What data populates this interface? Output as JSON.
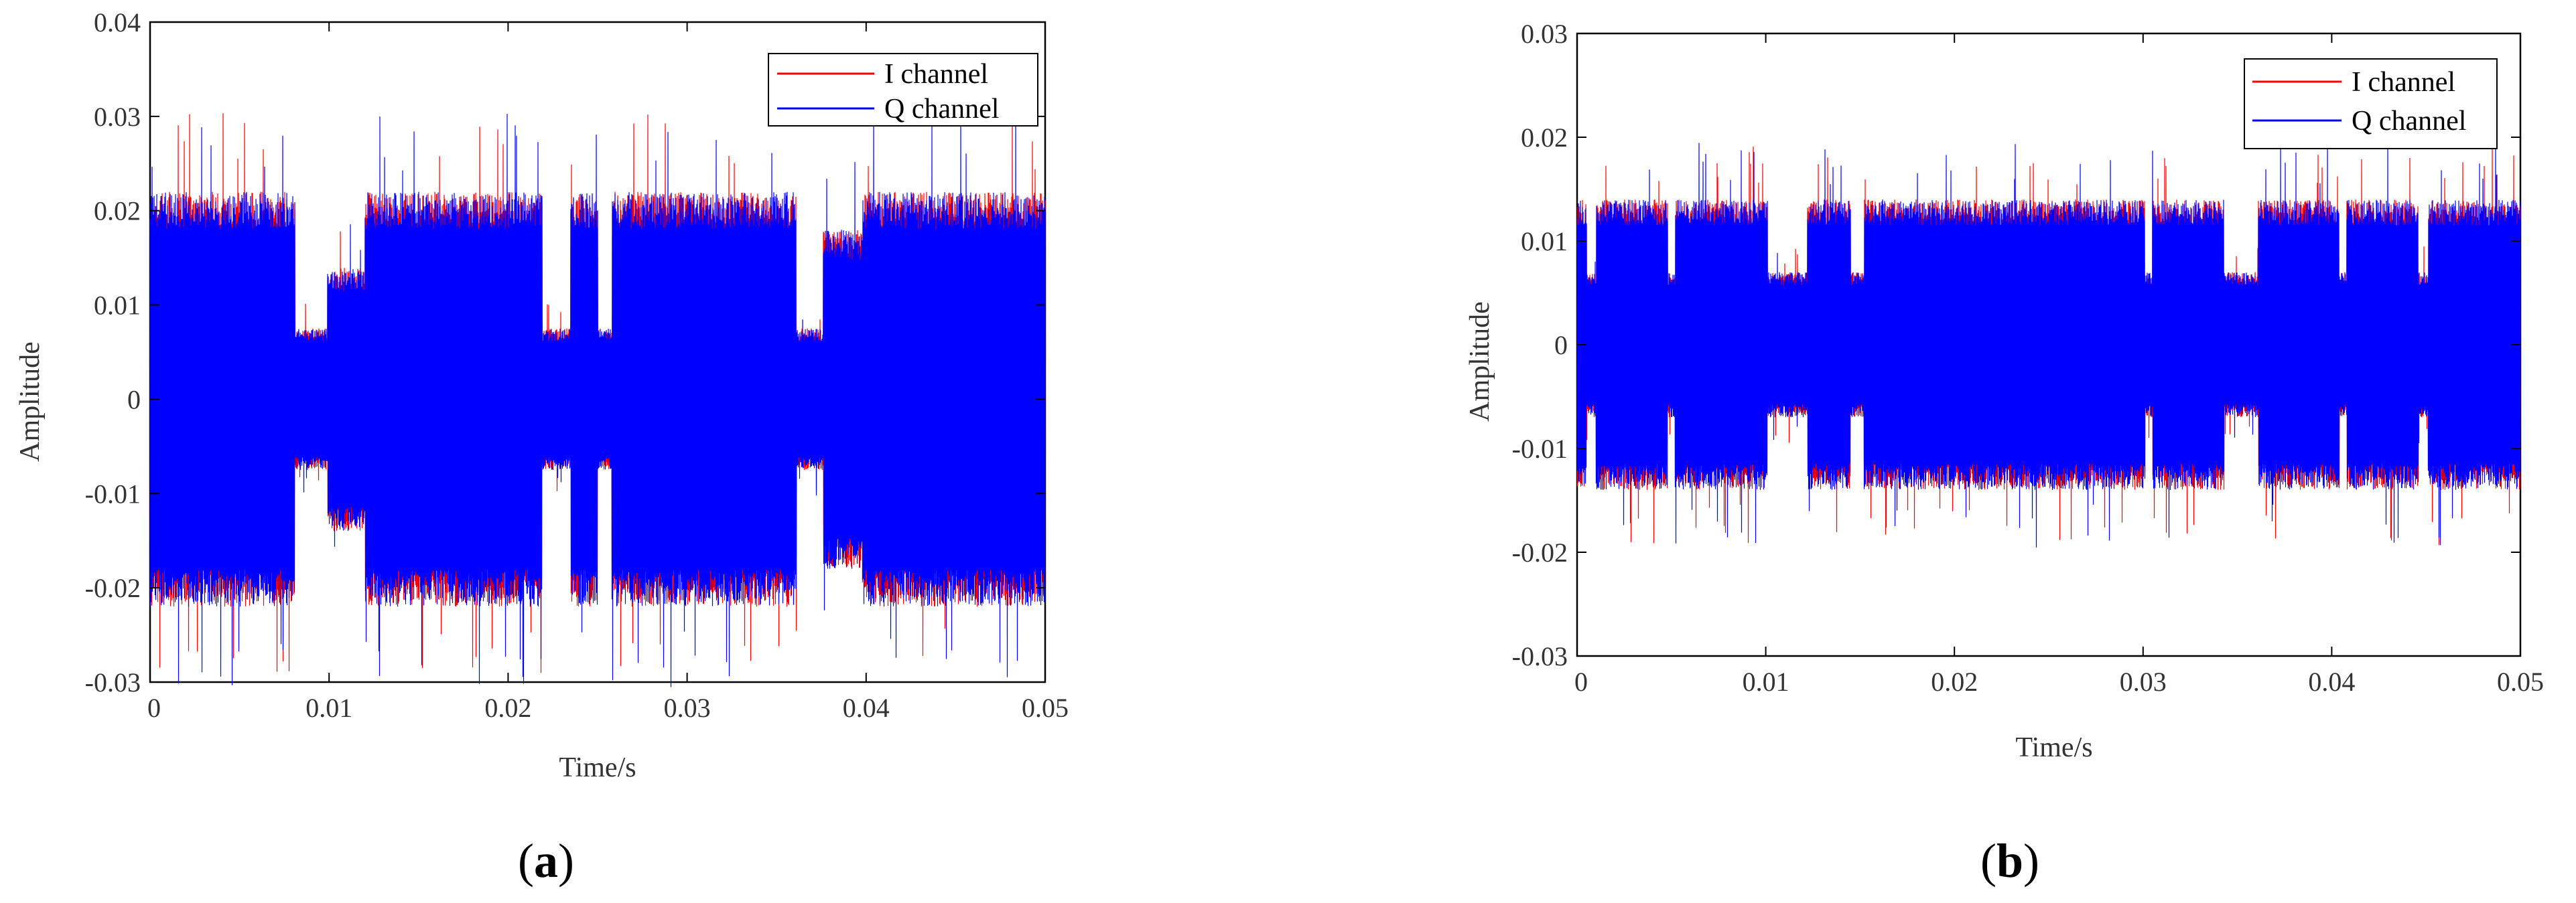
{
  "chart_data": [
    {
      "panel_label_open": "(",
      "panel_label_letter": "a",
      "panel_label_close": ")",
      "type": "line",
      "title": "",
      "xlabel": "Time/s",
      "ylabel": "Amplitude",
      "xlim": [
        0,
        0.05
      ],
      "ylim": [
        -0.03,
        0.04
      ],
      "x_ticks": [
        0,
        0.01,
        0.02,
        0.03,
        0.04,
        0.05
      ],
      "x_tick_labels": [
        "0",
        "0.01",
        "0.02",
        "0.03",
        "0.04",
        "0.05"
      ],
      "y_ticks": [
        -0.03,
        -0.02,
        -0.01,
        0,
        0.01,
        0.02,
        0.03,
        0.04
      ],
      "y_tick_labels": [
        "-0.03",
        "-0.02",
        "-0.01",
        "0",
        "0.01",
        "0.02",
        "0.03",
        "0.04"
      ],
      "grid": false,
      "legend_position": "top-right",
      "series": [
        {
          "name": "I channel",
          "color": "#ff0000"
        },
        {
          "name": "Q channel",
          "color": "#0000ff"
        }
      ],
      "envelope_segments": [
        {
          "x": [
            0.0,
            0.0081
          ],
          "amplitude": 0.022
        },
        {
          "x": [
            0.0081,
            0.0099
          ],
          "amplitude": 0.0075
        },
        {
          "x": [
            0.0099,
            0.012
          ],
          "amplitude": 0.014
        },
        {
          "x": [
            0.012,
            0.0219
          ],
          "amplitude": 0.022
        },
        {
          "x": [
            0.0219,
            0.0235
          ],
          "amplitude": 0.0075
        },
        {
          "x": [
            0.0235,
            0.025
          ],
          "amplitude": 0.022
        },
        {
          "x": [
            0.025,
            0.0258
          ],
          "amplitude": 0.0075
        },
        {
          "x": [
            0.0258,
            0.0361
          ],
          "amplitude": 0.022
        },
        {
          "x": [
            0.0361,
            0.0376
          ],
          "amplitude": 0.0075
        },
        {
          "x": [
            0.0376,
            0.0398
          ],
          "amplitude": 0.018
        },
        {
          "x": [
            0.0398,
            0.05
          ],
          "amplitude": 0.022
        }
      ]
    },
    {
      "panel_label_open": "(",
      "panel_label_letter": "b",
      "panel_label_close": ")",
      "type": "line",
      "title": "",
      "xlabel": "Time/s",
      "ylabel": "Amplitude",
      "xlim": [
        0,
        0.05
      ],
      "ylim": [
        -0.03,
        0.03
      ],
      "x_ticks": [
        0,
        0.01,
        0.02,
        0.03,
        0.04,
        0.05
      ],
      "x_tick_labels": [
        "0",
        "0.01",
        "0.02",
        "0.03",
        "0.04",
        "0.05"
      ],
      "y_ticks": [
        -0.03,
        -0.02,
        -0.01,
        0,
        0.01,
        0.02,
        0.03
      ],
      "y_tick_labels": [
        "-0.03",
        "-0.02",
        "-0.01",
        "0",
        "0.01",
        "0.02",
        "0.03"
      ],
      "grid": false,
      "legend_position": "top-right",
      "series": [
        {
          "name": "I channel",
          "color": "#ff0000"
        },
        {
          "name": "Q channel",
          "color": "#0000ff"
        }
      ],
      "envelope_segments": [
        {
          "x": [
            0.0,
            0.0005
          ],
          "amplitude": 0.014
        },
        {
          "x": [
            0.0005,
            0.001
          ],
          "amplitude": 0.007
        },
        {
          "x": [
            0.001,
            0.0048
          ],
          "amplitude": 0.014
        },
        {
          "x": [
            0.0048,
            0.0052
          ],
          "amplitude": 0.007
        },
        {
          "x": [
            0.0052,
            0.0101
          ],
          "amplitude": 0.014
        },
        {
          "x": [
            0.0101,
            0.0122
          ],
          "amplitude": 0.007
        },
        {
          "x": [
            0.0122,
            0.0145
          ],
          "amplitude": 0.014
        },
        {
          "x": [
            0.0145,
            0.0152
          ],
          "amplitude": 0.007
        },
        {
          "x": [
            0.0152,
            0.0205
          ],
          "amplitude": 0.014
        },
        {
          "x": [
            0.0205,
            0.0245
          ],
          "amplitude": 0.014
        },
        {
          "x": [
            0.0245,
            0.0301
          ],
          "amplitude": 0.014
        },
        {
          "x": [
            0.0301,
            0.0305
          ],
          "amplitude": 0.007
        },
        {
          "x": [
            0.0305,
            0.0343
          ],
          "amplitude": 0.014
        },
        {
          "x": [
            0.0343,
            0.0361
          ],
          "amplitude": 0.007
        },
        {
          "x": [
            0.0361,
            0.0404
          ],
          "amplitude": 0.014
        },
        {
          "x": [
            0.0404,
            0.0408
          ],
          "amplitude": 0.007
        },
        {
          "x": [
            0.0408,
            0.0446
          ],
          "amplitude": 0.014
        },
        {
          "x": [
            0.0446,
            0.0451
          ],
          "amplitude": 0.007
        },
        {
          "x": [
            0.0451,
            0.05
          ],
          "amplitude": 0.014
        }
      ]
    }
  ]
}
